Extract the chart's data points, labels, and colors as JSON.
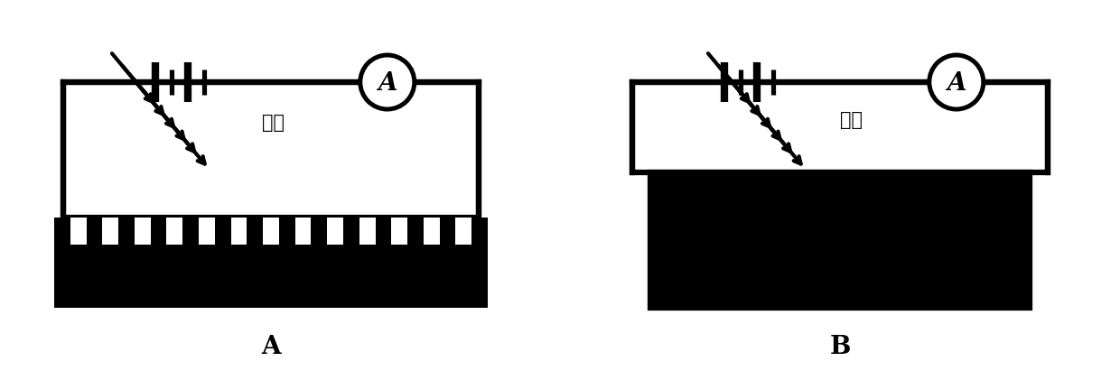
{
  "bg_color": "#ffffff",
  "line_color": "#000000",
  "label_A": "A",
  "label_B": "B",
  "light_label": "光照",
  "amm_label": "A",
  "lw": 3.0
}
